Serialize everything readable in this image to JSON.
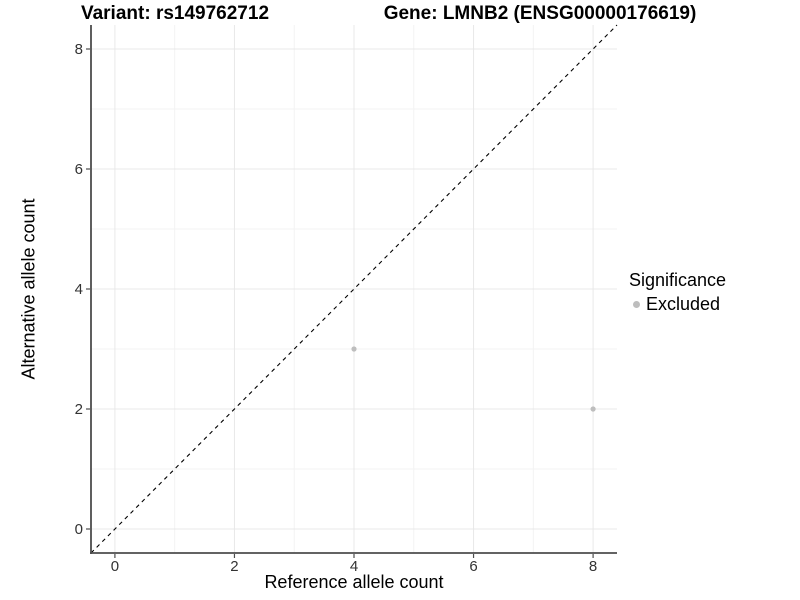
{
  "chart_data": {
    "type": "scatter",
    "title_left": "Variant: rs149762712",
    "title_right": "Gene: LMNB2 (ENSG00000176619)",
    "xlabel": "Reference allele count",
    "ylabel": "Alternative allele count",
    "xlim": [
      -0.4,
      8.4
    ],
    "ylim": [
      -0.4,
      8.4
    ],
    "xticks": [
      0,
      2,
      4,
      6,
      8
    ],
    "yticks": [
      0,
      2,
      4,
      6,
      8
    ],
    "minor_xticks": [
      1,
      3,
      5,
      7
    ],
    "minor_yticks": [
      1,
      3,
      5,
      7
    ],
    "grid": "major and minor gridlines, white background",
    "reference_line": {
      "type": "identity",
      "equation": "y = x",
      "style": "dashed",
      "color": "#000000"
    },
    "series": [
      {
        "name": "Excluded",
        "color": "#bebebe",
        "points": [
          {
            "x": 4,
            "y": 3
          },
          {
            "x": 8,
            "y": 2
          }
        ]
      }
    ],
    "legend": {
      "title": "Significance",
      "position": "right",
      "items": [
        {
          "label": "Excluded",
          "color": "#bebebe"
        }
      ]
    },
    "colors": {
      "background": "#ffffff",
      "grid_major": "#e8e8e8",
      "grid_minor": "#f3f3f3",
      "axis_line": "#4d4d4d",
      "tick_label": "#333333",
      "title": "#000000"
    }
  }
}
